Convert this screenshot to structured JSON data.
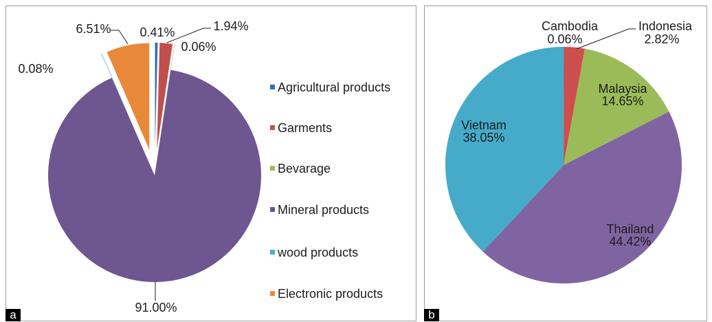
{
  "chart_data": [
    {
      "type": "pie",
      "panel_label": "a",
      "categories": [
        "Agricultural products",
        "Garments",
        "Bevarage",
        "Mineral products",
        "wood products",
        "Electronic products"
      ],
      "values": [
        0.41,
        1.94,
        0.06,
        91.0,
        0.08,
        6.51
      ],
      "data_labels": [
        "0.41%",
        "1.94%",
        "0.06%",
        "91.00%",
        "0.08%",
        "6.51%"
      ],
      "colors": [
        "#3470b4",
        "#c0504d",
        "#9bbb59",
        "#6e5690",
        "#4bacc6",
        "#e8893a"
      ],
      "exploded": [
        true,
        true,
        true,
        false,
        true,
        true
      ],
      "legend": "right"
    },
    {
      "type": "pie",
      "panel_label": "b",
      "categories": [
        "Cambodia",
        "Indonesia",
        "Malaysia",
        "Thailand",
        "Vietnam"
      ],
      "values": [
        0.06,
        2.82,
        14.65,
        44.42,
        38.05
      ],
      "data_labels": [
        "0.06%",
        "2.82%",
        "14.65%",
        "44.42%",
        "38.05%"
      ],
      "colors": [
        "#4f81bd",
        "#cc4f4d",
        "#9bbb59",
        "#8064a2",
        "#46abc8"
      ]
    }
  ]
}
